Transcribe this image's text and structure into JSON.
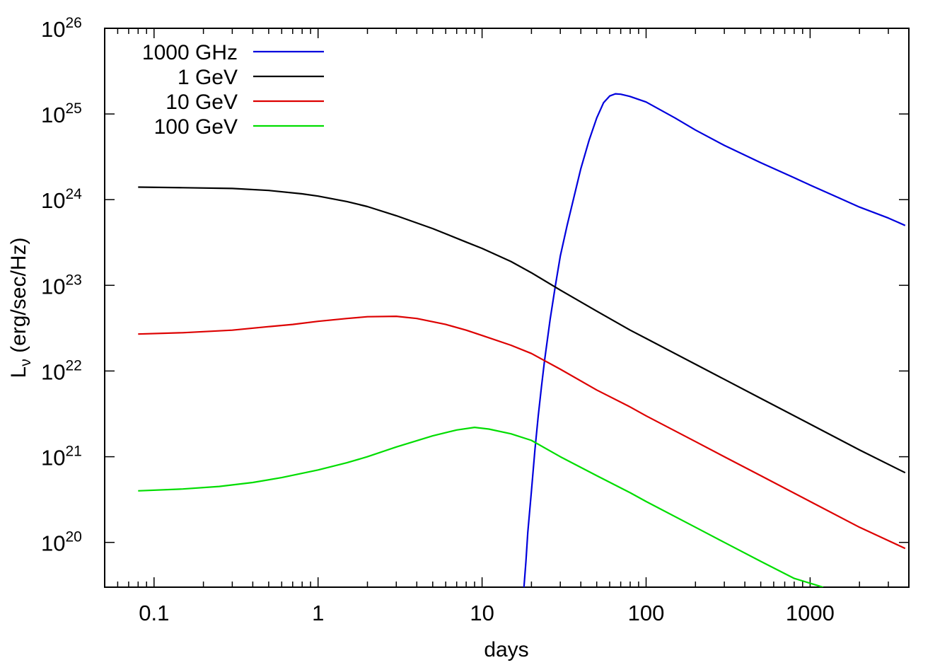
{
  "chart_data": {
    "type": "line",
    "title": "",
    "xlabel": "days",
    "ylabel": "Lν (erg/sec/Hz)",
    "ylabel_main": "L",
    "ylabel_sub": "ν",
    "ylabel_rest": " (erg/sec/Hz)",
    "x_scale": "log",
    "y_scale": "log",
    "xlim": [
      0.05,
      4000
    ],
    "ylim": [
      3e+19,
      1e+26
    ],
    "x_ticks": [
      {
        "value": 0.1,
        "label": "0.1"
      },
      {
        "value": 1,
        "label": "1"
      },
      {
        "value": 10,
        "label": "10"
      },
      {
        "value": 100,
        "label": "100"
      },
      {
        "value": 1000,
        "label": "1000"
      }
    ],
    "y_ticks": [
      {
        "value": 1e+20,
        "base": "10",
        "exp": "20"
      },
      {
        "value": 1e+21,
        "base": "10",
        "exp": "21"
      },
      {
        "value": 1e+22,
        "base": "10",
        "exp": "22"
      },
      {
        "value": 1e+23,
        "base": "10",
        "exp": "23"
      },
      {
        "value": 1e+24,
        "base": "10",
        "exp": "24"
      },
      {
        "value": 1e+25,
        "base": "10",
        "exp": "25"
      },
      {
        "value": 1e+26,
        "base": "10",
        "exp": "26"
      }
    ],
    "grid": false,
    "legend_position": "top-left",
    "series": [
      {
        "name": "1000 GHz",
        "color": "#0000dd",
        "points": [
          [
            18,
            3e+19
          ],
          [
            18.5,
            6e+19
          ],
          [
            19,
            1.3e+20
          ],
          [
            20,
            4e+20
          ],
          [
            21,
            1.2e+21
          ],
          [
            22,
            3e+21
          ],
          [
            23,
            6.5e+21
          ],
          [
            24,
            1.3e+22
          ],
          [
            26,
            4e+22
          ],
          [
            28,
            1e+23
          ],
          [
            30,
            2.2e+23
          ],
          [
            33,
            5e+23
          ],
          [
            36,
            1e+24
          ],
          [
            40,
            2.3e+24
          ],
          [
            45,
            5e+24
          ],
          [
            50,
            9e+24
          ],
          [
            55,
            1.35e+25
          ],
          [
            60,
            1.62e+25
          ],
          [
            65,
            1.72e+25
          ],
          [
            70,
            1.7e+25
          ],
          [
            80,
            1.6e+25
          ],
          [
            100,
            1.38e+25
          ],
          [
            150,
            9e+24
          ],
          [
            200,
            6.5e+24
          ],
          [
            300,
            4.3e+24
          ],
          [
            500,
            2.7e+24
          ],
          [
            800,
            1.8e+24
          ],
          [
            1000,
            1.48e+24
          ],
          [
            1500,
            1.05e+24
          ],
          [
            2000,
            8.2e+23
          ],
          [
            3000,
            6.1e+23
          ],
          [
            3800,
            5e+23
          ]
        ]
      },
      {
        "name": "1 GeV",
        "color": "#000000",
        "points": [
          [
            0.08,
            1.4e+24
          ],
          [
            0.15,
            1.38e+24
          ],
          [
            0.3,
            1.35e+24
          ],
          [
            0.5,
            1.28e+24
          ],
          [
            0.8,
            1.17e+24
          ],
          [
            1,
            1.1e+24
          ],
          [
            1.5,
            9.5e+23
          ],
          [
            2,
            8.3e+23
          ],
          [
            3,
            6.5e+23
          ],
          [
            5,
            4.6e+23
          ],
          [
            8,
            3.2e+23
          ],
          [
            10,
            2.7e+23
          ],
          [
            15,
            1.9e+23
          ],
          [
            20,
            1.4e+23
          ],
          [
            30,
            8.8e+22
          ],
          [
            50,
            5e+22
          ],
          [
            80,
            3e+22
          ],
          [
            100,
            2.4e+22
          ],
          [
            200,
            1.2e+22
          ],
          [
            300,
            8e+21
          ],
          [
            500,
            4.8e+21
          ],
          [
            1000,
            2.4e+21
          ],
          [
            2000,
            1.2e+21
          ],
          [
            3800,
            6.5e+20
          ]
        ]
      },
      {
        "name": "10 GeV",
        "color": "#dd0000",
        "points": [
          [
            0.08,
            2.7e+22
          ],
          [
            0.15,
            2.8e+22
          ],
          [
            0.3,
            3e+22
          ],
          [
            0.5,
            3.3e+22
          ],
          [
            0.7,
            3.5e+22
          ],
          [
            1,
            3.8e+22
          ],
          [
            1.5,
            4.1e+22
          ],
          [
            2,
            4.3e+22
          ],
          [
            3,
            4.35e+22
          ],
          [
            4,
            4.1e+22
          ],
          [
            6,
            3.5e+22
          ],
          [
            8,
            3e+22
          ],
          [
            10,
            2.6e+22
          ],
          [
            15,
            2e+22
          ],
          [
            20,
            1.6e+22
          ],
          [
            30,
            1.05e+22
          ],
          [
            50,
            6e+21
          ],
          [
            80,
            3.8e+21
          ],
          [
            100,
            3e+21
          ],
          [
            200,
            1.5e+21
          ],
          [
            300,
            1e+21
          ],
          [
            500,
            6e+20
          ],
          [
            1000,
            3e+20
          ],
          [
            2000,
            1.5e+20
          ],
          [
            3800,
            8.5e+19
          ]
        ]
      },
      {
        "name": "100 GeV",
        "color": "#00dd00",
        "points": [
          [
            0.08,
            4e+20
          ],
          [
            0.15,
            4.2e+20
          ],
          [
            0.25,
            4.5e+20
          ],
          [
            0.4,
            5e+20
          ],
          [
            0.6,
            5.7e+20
          ],
          [
            1,
            7e+20
          ],
          [
            1.5,
            8.5e+20
          ],
          [
            2,
            1e+21
          ],
          [
            3,
            1.3e+21
          ],
          [
            5,
            1.75e+21
          ],
          [
            7,
            2.05e+21
          ],
          [
            9,
            2.2e+21
          ],
          [
            11,
            2.1e+21
          ],
          [
            15,
            1.85e+21
          ],
          [
            20,
            1.55e+21
          ],
          [
            30,
            1e+21
          ],
          [
            50,
            6e+20
          ],
          [
            80,
            3.8e+20
          ],
          [
            100,
            3e+20
          ],
          [
            200,
            1.5e+20
          ],
          [
            300,
            1e+20
          ],
          [
            500,
            6e+19
          ],
          [
            800,
            3.8e+19
          ],
          [
            1200,
            3e+19
          ]
        ]
      }
    ]
  }
}
